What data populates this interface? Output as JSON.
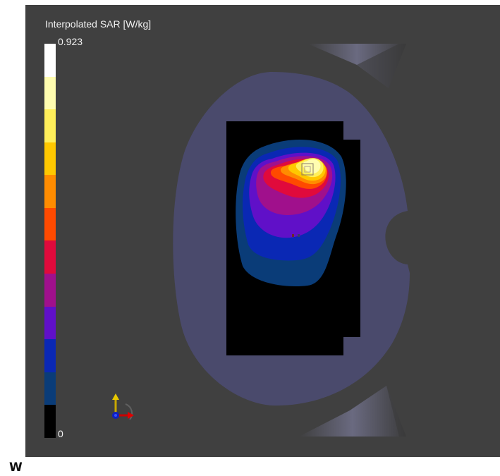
{
  "legend": {
    "title": "Interpolated SAR [W/kg]",
    "max_label": "0.923",
    "min_label": "0",
    "colors": [
      "#ffffff",
      "#fffdb0",
      "#ffef5a",
      "#ffc800",
      "#ff8c00",
      "#ff4a00",
      "#e00a3c",
      "#a0108c",
      "#6010c8",
      "#0a28b4",
      "#0a3c78",
      "#000000"
    ]
  },
  "scene": {
    "phantom_color": "#4a4a6c",
    "device_color": "#000000",
    "background_color": "#404040"
  },
  "corner_label": "W"
}
